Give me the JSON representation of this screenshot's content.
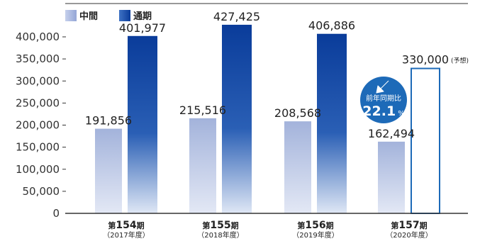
{
  "chart_data": {
    "type": "bar",
    "categories": [
      {
        "prefix": "第",
        "num": "154",
        "suffix": "期",
        "sub": "（2017年度）"
      },
      {
        "prefix": "第",
        "num": "155",
        "suffix": "期",
        "sub": "（2018年度）"
      },
      {
        "prefix": "第",
        "num": "156",
        "suffix": "期",
        "sub": "（2019年度）"
      },
      {
        "prefix": "第",
        "num": "157",
        "suffix": "期",
        "sub": "（2020年度）"
      }
    ],
    "series": [
      {
        "name": "中間",
        "values": [
          191856,
          215516,
          208568,
          162494
        ],
        "labels": [
          "191,856",
          "215,516",
          "208,568",
          "162,494"
        ]
      },
      {
        "name": "通期",
        "values": [
          401977,
          427425,
          406886,
          330000
        ],
        "labels": [
          "401,977",
          "427,425",
          "406,886",
          "330,000"
        ],
        "forecast": [
          false,
          false,
          false,
          true
        ]
      }
    ],
    "forecast_note": "(予想)",
    "ylim": [
      0,
      430000
    ],
    "yticks": [
      {
        "v": 0,
        "label": "0"
      },
      {
        "v": 50000,
        "label": "50,000"
      },
      {
        "v": 100000,
        "label": "100,000"
      },
      {
        "v": 150000,
        "label": "150,000"
      },
      {
        "v": 200000,
        "label": "200,000"
      },
      {
        "v": 250000,
        "label": "250,000"
      },
      {
        "v": 300000,
        "label": "300,000"
      },
      {
        "v": 350000,
        "label": "350,000"
      },
      {
        "v": 400000,
        "label": "400,000"
      }
    ],
    "grid": false,
    "legend": "top-left",
    "annotation": {
      "line1": "前年同期比",
      "value": "22.1",
      "unit": "%",
      "icon": "down-left-arrow-icon"
    }
  },
  "colors": {
    "interim": "#9fb0da",
    "full_top": "#0a3c9a",
    "full_bottom": "#dfe7f5",
    "forecast_border": "#1d6ab8",
    "badge": "#1d6ab8",
    "axis": "#333333"
  }
}
